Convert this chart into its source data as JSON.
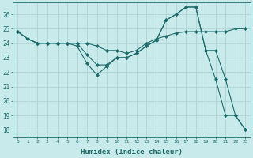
{
  "xlabel": "Humidex (Indice chaleur)",
  "bg_color": "#c8eaea",
  "grid_color": "#aed4d4",
  "line_color": "#1e6b6b",
  "x_ticks": [
    0,
    1,
    2,
    3,
    4,
    5,
    6,
    7,
    8,
    9,
    10,
    11,
    12,
    13,
    14,
    15,
    16,
    17,
    18,
    19,
    20,
    21,
    22,
    23
  ],
  "yticks": [
    18,
    19,
    20,
    21,
    22,
    23,
    24,
    25,
    26
  ],
  "ylim": [
    17.5,
    26.8
  ],
  "xlim": [
    -0.5,
    23.5
  ],
  "line1": [
    24.8,
    24.3,
    24.0,
    24.0,
    24.0,
    24.0,
    24.0,
    24.0,
    23.8,
    23.5,
    23.5,
    23.3,
    23.5,
    24.0,
    24.3,
    24.5,
    24.7,
    24.8,
    24.8,
    24.8,
    24.8,
    24.8,
    25.0,
    25.0
  ],
  "line2": [
    24.8,
    24.3,
    24.0,
    24.0,
    24.0,
    24.0,
    24.0,
    23.2,
    22.5,
    22.5,
    23.0,
    23.0,
    23.3,
    23.8,
    24.2,
    25.6,
    26.0,
    26.5,
    26.5,
    23.5,
    23.5,
    21.5,
    19.0,
    18.0
  ],
  "line3": [
    24.8,
    24.3,
    24.0,
    24.0,
    24.0,
    24.0,
    23.8,
    22.6,
    21.8,
    22.4,
    23.0,
    23.0,
    23.3,
    23.8,
    24.2,
    25.6,
    26.0,
    26.5,
    26.5,
    23.5,
    21.5,
    19.0,
    19.0,
    18.0
  ]
}
